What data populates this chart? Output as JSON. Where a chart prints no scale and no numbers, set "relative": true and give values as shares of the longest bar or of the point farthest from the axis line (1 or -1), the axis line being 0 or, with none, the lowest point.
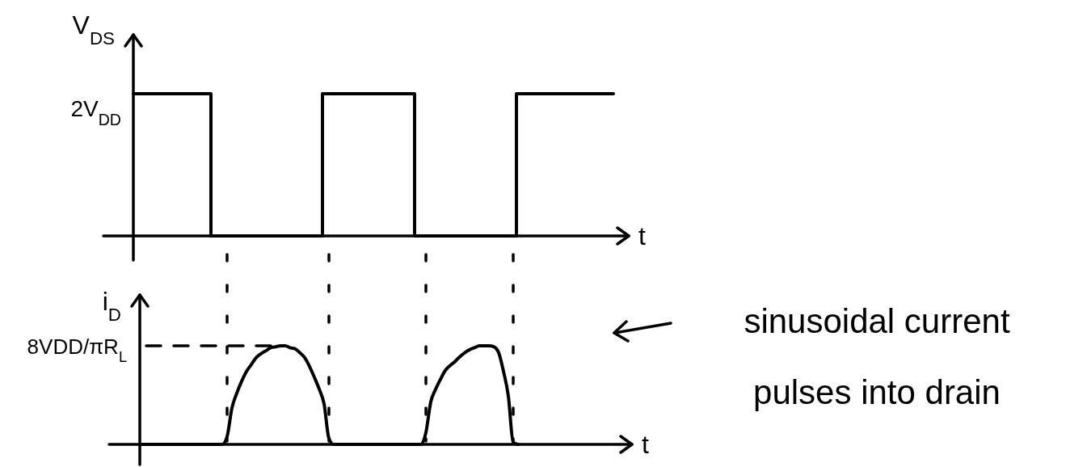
{
  "chart_data": [
    {
      "type": "step",
      "relative": true,
      "categories": [
        null,
        null,
        null,
        null,
        null,
        null,
        null,
        null,
        null,
        null,
        null,
        null,
        null,
        null,
        null,
        null,
        null,
        null,
        null,
        null,
        null,
        null,
        null,
        null,
        null,
        null,
        null,
        null,
        null,
        null,
        null,
        null,
        null,
        null,
        null,
        null,
        null,
        null,
        null,
        null,
        null,
        null,
        null,
        null,
        null,
        null,
        null,
        null,
        null,
        null,
        null,
        null,
        null,
        null,
        null,
        null,
        null,
        null,
        null,
        null,
        null,
        null,
        null,
        null,
        null,
        null,
        null,
        null,
        null,
        null,
        null,
        null,
        null,
        null,
        null,
        null,
        null,
        null,
        null,
        null,
        null,
        null,
        null,
        null,
        null,
        null,
        null,
        null,
        null,
        null,
        null,
        null,
        null,
        null,
        null,
        null,
        null,
        null,
        null,
        null
      ],
      "values": [
        1,
        1,
        1,
        1,
        1,
        1,
        1,
        1,
        1,
        1,
        1,
        1,
        1,
        1,
        1,
        1,
        0,
        0,
        0,
        0,
        0,
        0,
        0,
        0,
        0,
        0,
        0,
        0,
        0,
        0,
        0,
        0,
        0,
        0,
        0,
        0,
        0,
        0,
        0,
        1,
        1,
        1,
        1,
        1,
        1,
        1,
        1,
        1,
        1,
        1,
        1,
        1,
        1,
        1,
        1,
        1,
        1,
        1,
        0,
        0,
        0,
        0,
        0,
        0,
        0,
        0,
        0,
        0,
        0,
        0,
        0,
        0,
        0,
        0,
        0,
        0,
        0,
        0,
        0,
        1,
        1,
        1,
        1,
        1,
        1,
        1,
        1,
        1,
        1,
        1,
        1,
        1,
        1,
        1,
        1,
        1,
        1,
        1,
        1,
        1
      ],
      "color": "#000000",
      "xlabel": "t",
      "ylabel": "V$_{DS}$",
      "annotations": [
        "2V$_{DD}$"
      ]
    },
    {
      "type": "line",
      "relative": true,
      "grid": "x",
      "categories": [
        null,
        null,
        null,
        null,
        null,
        null,
        null,
        null,
        null,
        null,
        null,
        null,
        null,
        null,
        null,
        null,
        null,
        null,
        null,
        null,
        null,
        null,
        null,
        null,
        null,
        null,
        null,
        null,
        null,
        null,
        null,
        null,
        null,
        null,
        null,
        null,
        null,
        null,
        null,
        null,
        null,
        null,
        null,
        null,
        null,
        null,
        null,
        null,
        null,
        null,
        null,
        null,
        null,
        null,
        null,
        null,
        null,
        null,
        null,
        null,
        null,
        null,
        null,
        null,
        null,
        null,
        null,
        null,
        null,
        null,
        null,
        null,
        null,
        null,
        null,
        null,
        null,
        null,
        null
      ],
      "values": [
        0,
        0,
        0,
        0,
        0,
        0,
        0,
        0,
        0,
        0,
        0,
        0,
        0,
        0,
        0,
        0,
        0,
        0,
        0.08,
        0.37,
        0.52,
        0.64,
        0.74,
        0.81,
        0.88,
        0.92,
        0.95,
        0.98,
        0.99,
        1,
        1,
        0.98,
        0.97,
        0.93,
        0.88,
        0.79,
        0.68,
        0.56,
        0.41,
        0.06,
        0,
        0,
        0,
        0,
        0,
        0,
        0,
        0,
        0,
        0,
        0,
        0,
        0,
        0,
        0,
        0,
        0,
        0,
        0,
        0.12,
        0.43,
        0.56,
        0.66,
        0.75,
        0.8,
        0.84,
        0.89,
        0.93,
        0.96,
        0.98,
        1,
        1,
        1,
        0.99,
        0.93,
        0.74,
        0.49,
        0.02,
        0
      ],
      "color": "#000000",
      "xlabel": "t",
      "ylabel": "i$_{D}$",
      "ref_lines": [
        {
          "axis": "y",
          "value": 1,
          "label": "8VDD/πR$_{L}$",
          "line_style": "dashed",
          "color": "#000000"
        }
      ],
      "annotations": [
        "sinusoidal current pulses into drain"
      ]
    }
  ]
}
